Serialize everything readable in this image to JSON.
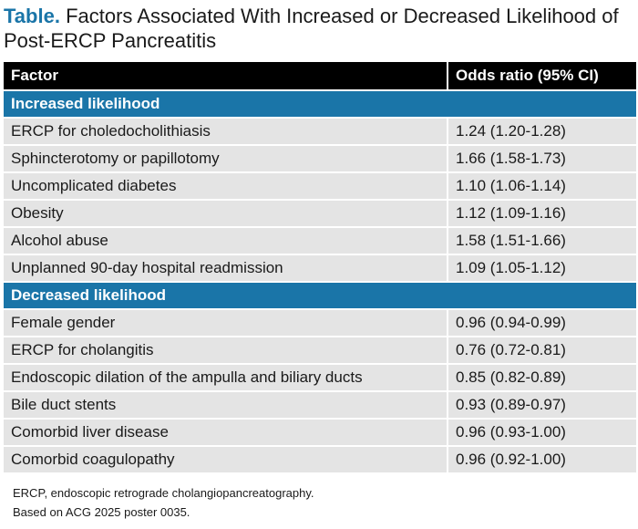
{
  "title": {
    "lead": "Table.",
    "text": "Factors Associated With Increased or Decreased Likelihood of Post-ERCP Pancreatitis"
  },
  "table": {
    "headers": {
      "factor": "Factor",
      "odds_ratio": "Odds ratio (95% CI)"
    },
    "sections": [
      {
        "label": "Increased likelihood",
        "rows": [
          {
            "factor": "ERCP for choledocholithiasis",
            "odds_ratio": "1.24 (1.20-1.28)"
          },
          {
            "factor": "Sphincterotomy or papillotomy",
            "odds_ratio": "1.66 (1.58-1.73)"
          },
          {
            "factor": "Uncomplicated diabetes",
            "odds_ratio": "1.10 (1.06-1.14)"
          },
          {
            "factor": "Obesity",
            "odds_ratio": "1.12 (1.09-1.16)"
          },
          {
            "factor": "Alcohol abuse",
            "odds_ratio": "1.58 (1.51-1.66)"
          },
          {
            "factor": "Unplanned 90-day hospital readmission",
            "odds_ratio": "1.09 (1.05-1.12)"
          }
        ]
      },
      {
        "label": "Decreased likelihood",
        "rows": [
          {
            "factor": "Female gender",
            "odds_ratio": "0.96 (0.94-0.99)"
          },
          {
            "factor": "ERCP for cholangitis",
            "odds_ratio": "0.76 (0.72-0.81)"
          },
          {
            "factor": "Endoscopic dilation of the ampulla and biliary ducts",
            "odds_ratio": "0.85 (0.82-0.89)"
          },
          {
            "factor": "Bile duct stents",
            "odds_ratio": "0.93 (0.89-0.97)"
          },
          {
            "factor": "Comorbid liver disease",
            "odds_ratio": "0.96 (0.93-1.00)"
          },
          {
            "factor": "Comorbid coagulopathy",
            "odds_ratio": "0.96 (0.92-1.00)"
          }
        ]
      }
    ]
  },
  "footnotes": [
    "ERCP, endoscopic retrograde cholangiopancreatography.",
    "Based on ACG 2025 poster 0035."
  ],
  "colors": {
    "accent": "#1a75a8",
    "header_bg": "#000000",
    "row_bg": "#e4e4e4"
  }
}
